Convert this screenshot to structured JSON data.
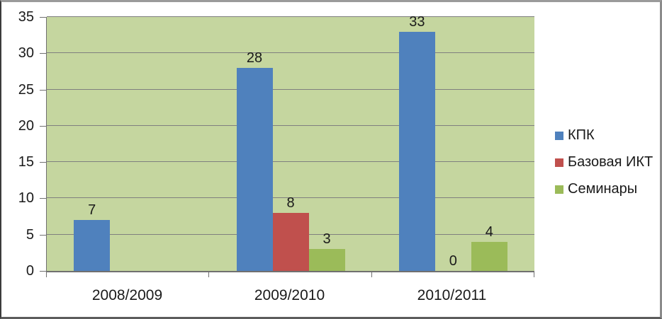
{
  "chart_data": {
    "type": "bar",
    "categories": [
      "2008/2009",
      "2009/2010",
      "2010/2011"
    ],
    "series": [
      {
        "name": "КПК",
        "color": "#4F81BD",
        "values": [
          7,
          28,
          33
        ]
      },
      {
        "name": "Базовая ИКТ",
        "color": "#C0504D",
        "values": [
          null,
          8,
          0
        ]
      },
      {
        "name": "Семинары",
        "color": "#9BBB59",
        "values": [
          null,
          3,
          4
        ]
      }
    ],
    "ylim": [
      0,
      35
    ],
    "ytick_step": 5,
    "ytick_labels": [
      "0",
      "5",
      "10",
      "15",
      "20",
      "25",
      "30",
      "35"
    ],
    "grid": true,
    "data_labels_shown": [
      "7",
      "28",
      "8",
      "3",
      "33",
      "0",
      "4"
    ],
    "legend_position": "right",
    "title": "",
    "xlabel": "",
    "ylabel": "",
    "colors": {
      "plot_background": "#C5D69F",
      "gridline": "#7F7F7F",
      "axis_line": "#707070",
      "text": "#1a1a1a"
    }
  }
}
